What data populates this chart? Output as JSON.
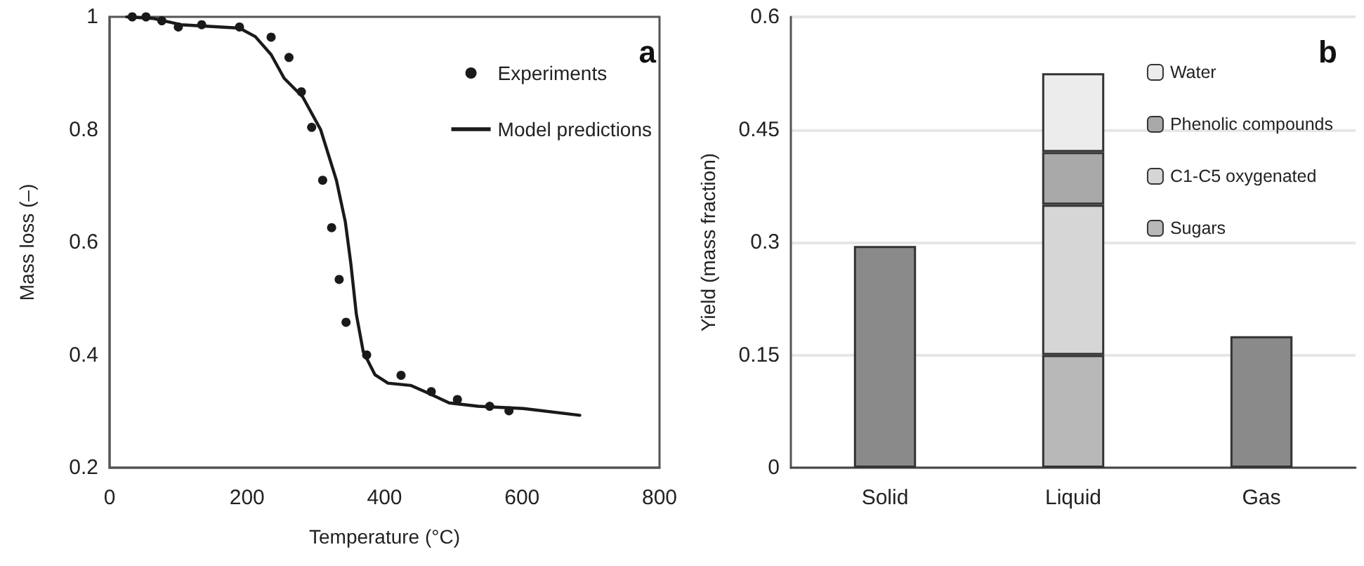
{
  "chart_data": [
    {
      "type": "scatter",
      "xlabel": "Temperature (°C)",
      "ylabel": "Mass loss (–)",
      "annotations": [
        "a"
      ],
      "xlim": [
        0,
        800
      ],
      "xticks": [
        0,
        200,
        400,
        600,
        800
      ],
      "ylim": [
        0.2,
        1
      ],
      "yticks": [
        0.2,
        0.4,
        0.6,
        0.8,
        1
      ],
      "grid": false,
      "legend": "top right",
      "series": [
        {
          "name": "Experiments",
          "type": "scatter",
          "marker": "circle",
          "color": "#1a1a1a",
          "x": [
            33,
            53,
            76,
            100,
            134,
            189,
            235,
            261,
            279,
            294,
            310,
            323,
            334,
            344,
            374,
            424,
            468,
            506,
            553,
            581
          ],
          "values": [
            1.0,
            1.0,
            0.993,
            0.982,
            0.986,
            0.982,
            0.964,
            0.928,
            0.867,
            0.804,
            0.71,
            0.626,
            0.534,
            0.458,
            0.4,
            0.364,
            0.335,
            0.321,
            0.309,
            0.301
          ]
        },
        {
          "name": "Model predictions",
          "type": "line",
          "marker": "none",
          "line_style": "solid",
          "color": "#1a1a1a",
          "x": [
            25,
            64,
            104,
            189,
            212,
            235,
            254,
            281,
            307,
            330,
            343,
            351,
            359,
            369,
            386,
            405,
            438,
            464,
            494,
            536,
            602,
            684
          ],
          "values": [
            1.0,
            0.997,
            0.986,
            0.98,
            0.965,
            0.933,
            0.891,
            0.858,
            0.8,
            0.71,
            0.636,
            0.562,
            0.472,
            0.406,
            0.365,
            0.35,
            0.346,
            0.332,
            0.315,
            0.309,
            0.305,
            0.293
          ]
        }
      ]
    },
    {
      "type": "bar",
      "stacked": true,
      "ylabel": "Yield (mass fraction)",
      "annotations": [
        "b"
      ],
      "categories": [
        "Solid",
        "Liquid",
        "Gas"
      ],
      "ylim": [
        0,
        0.6
      ],
      "yticks": [
        0,
        0.15,
        0.3,
        0.45,
        0.6
      ],
      "grid": "y",
      "legend": "top right",
      "series": [
        {
          "color": "#8a8a8a",
          "values": [
            0.295,
            null,
            0.175
          ]
        },
        {
          "name": "Sugars",
          "color": "#b8b8b8",
          "values": [
            null,
            0.15,
            null
          ]
        },
        {
          "name": "C1-C5 oxygenated",
          "color": "#d6d6d6",
          "values": [
            null,
            0.2,
            null
          ]
        },
        {
          "name": "Phenolic compounds",
          "color": "#a9a9a9",
          "values": [
            null,
            0.07,
            null
          ]
        },
        {
          "name": "Water",
          "color": "#ececec",
          "values": [
            null,
            0.105,
            null
          ]
        }
      ]
    }
  ]
}
